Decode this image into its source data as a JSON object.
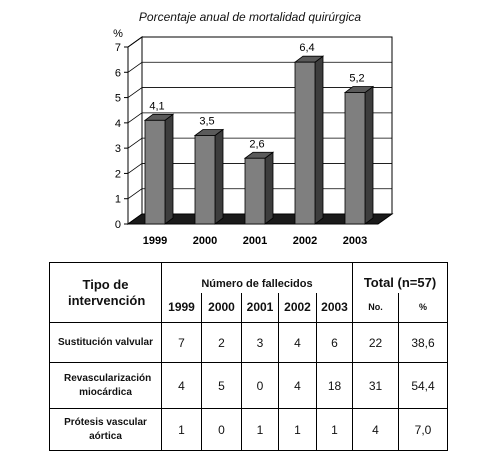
{
  "chart_data": {
    "type": "bar",
    "title": "Porcentaje anual de mortalidad quirúrgica",
    "ylabel": "%",
    "xlabel": "",
    "categories": [
      "1999",
      "2000",
      "2001",
      "2002",
      "2003"
    ],
    "values": [
      4.1,
      3.5,
      2.6,
      6.4,
      5.2
    ],
    "data_labels": [
      "4,1",
      "3,5",
      "2,6",
      "6,4",
      "5,2"
    ],
    "yticks": [
      "0",
      "1",
      "2",
      "3",
      "4",
      "5",
      "6",
      "7"
    ],
    "ylim": [
      0,
      7
    ],
    "grid": true,
    "style": "3d",
    "colors": {
      "bar": "#7f7f7f",
      "bar_side": "#3d3d3d",
      "floor": "#1a1a1a"
    }
  },
  "table": {
    "tipo_header": "Tipo de intervención",
    "fallecidos_header": "Número de fallecidos",
    "total_header": "Total (n=57)",
    "years": [
      "1999",
      "2000",
      "2001",
      "2002",
      "2003"
    ],
    "total_subheaders": [
      "No.",
      "%"
    ],
    "rows": [
      {
        "label": "Sustitución valvular",
        "values": [
          "7",
          "2",
          "3",
          "4",
          "6"
        ],
        "total_no": "22",
        "total_pct": "38,6"
      },
      {
        "label": "Revascularización miocárdica",
        "values": [
          "4",
          "5",
          "0",
          "4",
          "18"
        ],
        "total_no": "31",
        "total_pct": "54,4"
      },
      {
        "label": "Prótesis vascular aórtica",
        "values": [
          "1",
          "0",
          "1",
          "1",
          "1"
        ],
        "total_no": "4",
        "total_pct": "7,0"
      }
    ]
  }
}
